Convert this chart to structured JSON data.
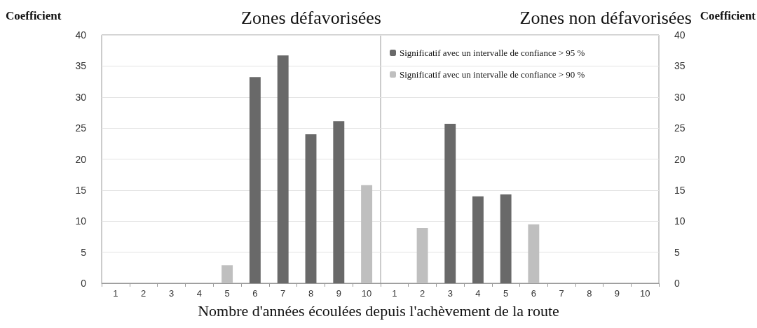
{
  "chart_data": [
    {
      "type": "bar",
      "title": "Zones défavorisées",
      "ylabel": "Coefficient",
      "xlabel": "Nombre d'années écoulées depuis l'achèvement de la route",
      "categories": [
        "1",
        "2",
        "3",
        "4",
        "5",
        "6",
        "7",
        "8",
        "9",
        "10"
      ],
      "series": [
        {
          "color": "#696969",
          "values": [
            null,
            null,
            null,
            null,
            null,
            33.2,
            36.7,
            24,
            26.1,
            null
          ]
        },
        {
          "color": "#bfbfbf",
          "values": [
            null,
            null,
            null,
            null,
            2.9,
            null,
            null,
            null,
            null,
            15.8
          ]
        }
      ],
      "ylim": [
        0,
        40
      ],
      "yticks": [
        0,
        5,
        10,
        15,
        20,
        25,
        30,
        35,
        40
      ],
      "grid": "y",
      "legend": false
    },
    {
      "type": "bar",
      "title": "Zones non défavorisées",
      "y2label": "Coefficient",
      "categories": [
        "1",
        "2",
        "3",
        "4",
        "5",
        "6",
        "7",
        "8",
        "9",
        "10"
      ],
      "series": [
        {
          "name": "Significatif avec un intervalle de confiance > 95 %",
          "color": "#696969",
          "axis": "y2",
          "values": [
            null,
            null,
            25.7,
            14,
            14.3,
            null,
            null,
            null,
            null,
            null
          ]
        },
        {
          "name": "Significatif avec un intervalle de confiance > 90 %",
          "color": "#bfbfbf",
          "axis": "y2",
          "values": [
            null,
            8.9,
            null,
            null,
            null,
            9.5,
            null,
            null,
            null,
            null
          ]
        }
      ],
      "y2lim": [
        0,
        40
      ],
      "y2ticks": [
        0,
        5,
        10,
        15,
        20,
        25,
        30,
        35,
        40
      ],
      "grid": "y",
      "legend": "top left"
    }
  ]
}
